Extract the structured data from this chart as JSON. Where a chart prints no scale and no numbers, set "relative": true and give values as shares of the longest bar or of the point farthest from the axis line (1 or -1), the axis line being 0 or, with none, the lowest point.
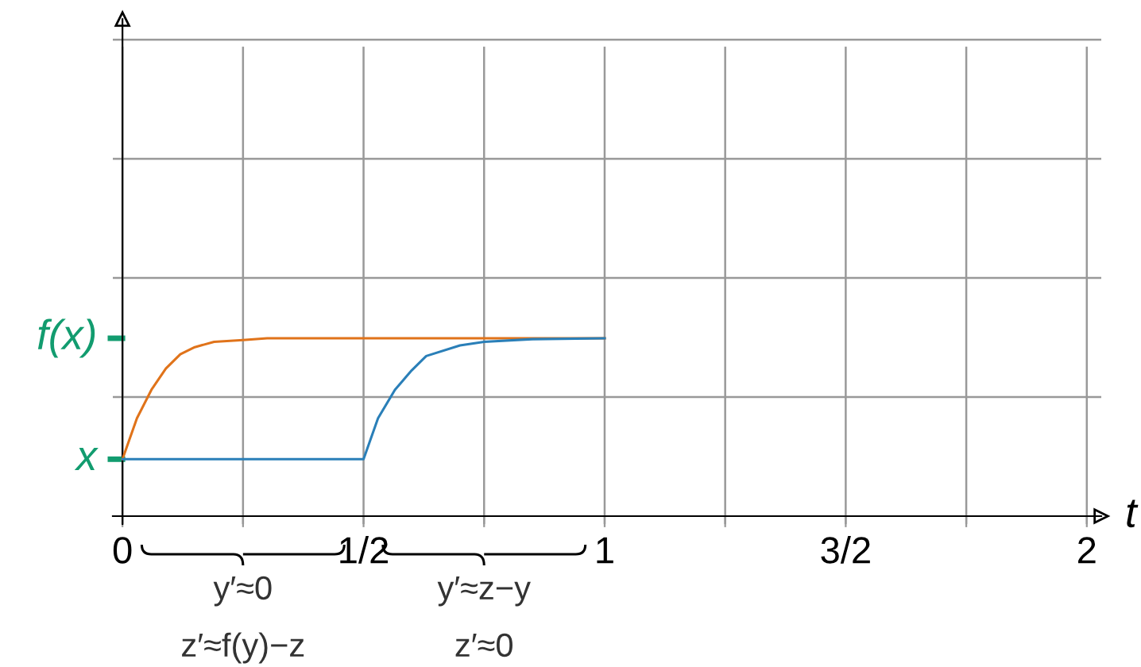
{
  "chart_data": {
    "type": "line",
    "xlabel": "t",
    "relative": true,
    "xlim": [
      -0.02,
      2.03
    ],
    "xticks": [
      0,
      {
        "value": 0.25,
        "label": null
      },
      {
        "value": 0.5,
        "label": "1/2"
      },
      {
        "value": 0.75,
        "label": null
      },
      1,
      {
        "value": 1.25,
        "label": null
      },
      {
        "value": 1.5,
        "label": "3/2"
      },
      {
        "value": 1.75,
        "label": null
      },
      2
    ],
    "ref_lines": [
      {
        "axis": "y",
        "value": 0.32,
        "label": "x",
        "color": "#129c6f"
      },
      {
        "axis": "y",
        "value": 1,
        "label": "f(x)",
        "color": "#129c6f"
      }
    ],
    "grid": true,
    "legend": false,
    "marker": "none",
    "line_style": "solid",
    "series": [
      {
        "color": "#e0731a",
        "x": [
          0,
          0.03,
          0.06,
          0.09,
          0.12,
          0.15,
          0.19,
          0.25,
          0.3,
          0.4,
          1
        ],
        "values": [
          0.32,
          0.55,
          0.71,
          0.83,
          0.91,
          0.95,
          0.98,
          0.99,
          1.0,
          1.0,
          1.0
        ]
      },
      {
        "color": "#2a7fb8",
        "x": [
          0,
          0.5,
          0.53,
          0.565,
          0.6,
          0.63,
          0.7,
          0.75,
          0.85,
          1
        ],
        "values": [
          0.32,
          0.32,
          0.55,
          0.71,
          0.82,
          0.9,
          0.96,
          0.98,
          0.995,
          1.0
        ]
      }
    ],
    "annotations": [
      "y′≈0",
      "y′≈z−y",
      "z′≈f(y)−z",
      "z′≈0"
    ]
  }
}
